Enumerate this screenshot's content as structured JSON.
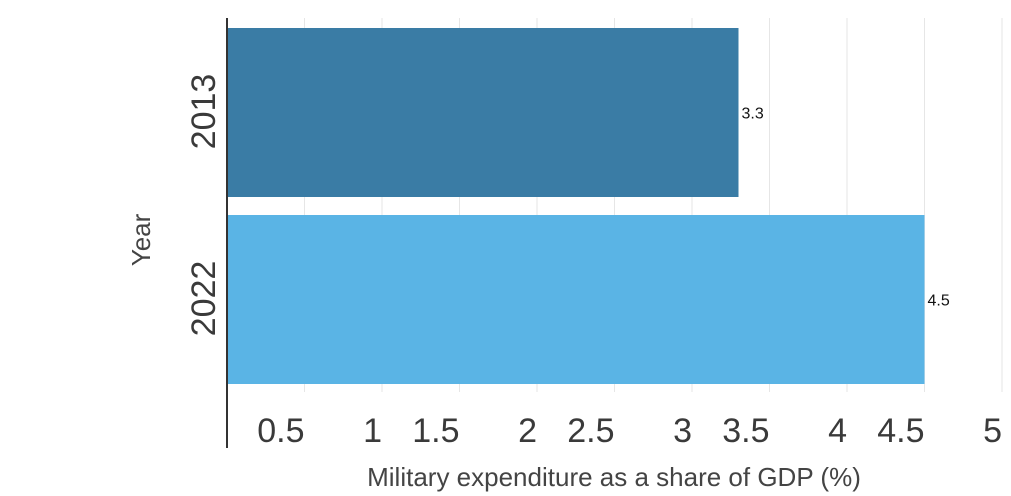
{
  "chart_data": {
    "type": "bar",
    "orientation": "horizontal",
    "title": "",
    "xlabel": "Military expenditure as a share of GDP (%)",
    "ylabel": "Year",
    "categories": [
      "2013",
      "2022"
    ],
    "values": [
      3.3,
      4.5
    ],
    "data_labels": [
      "3.3",
      "4.5"
    ],
    "colors": [
      "#3a7ca5",
      "#5ab4e5"
    ],
    "xlim": [
      0,
      5
    ],
    "x_ticks": [
      0.5,
      1,
      1.5,
      2,
      2.5,
      3,
      3.5,
      4,
      4.5,
      5
    ],
    "x_tick_labels": [
      "0.5",
      "1",
      "1.5",
      "2",
      "2.5",
      "3",
      "3.5",
      "4",
      "4.5",
      "5"
    ],
    "grid": true,
    "grid_color": "#e6e6e6",
    "axis_color": "#333333"
  }
}
